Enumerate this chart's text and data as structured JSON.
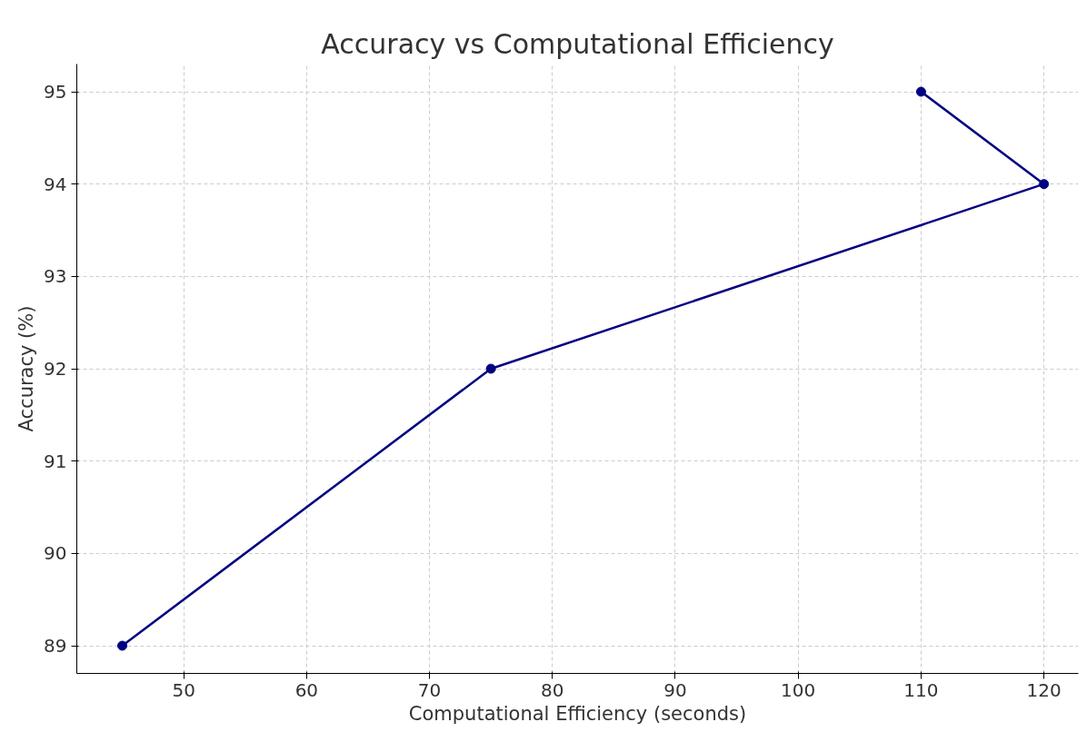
{
  "chart_data": {
    "type": "line",
    "title": "Accuracy vs Computational Efficiency",
    "xlabel": "Computational Efficiency (seconds)",
    "ylabel": "Accuracy (%)",
    "x": [
      45,
      75,
      120,
      110
    ],
    "series": [
      {
        "color": "#000080",
        "values": [
          89,
          92,
          94,
          95
        ]
      }
    ],
    "xlim": [
      41.3,
      122.8
    ],
    "ylim": [
      88.7,
      95.3
    ],
    "xticks": [
      50,
      60,
      70,
      80,
      90,
      100,
      110,
      120
    ],
    "yticks": [
      89,
      90,
      91,
      92,
      93,
      94,
      95
    ],
    "grid": true,
    "marker": "circle",
    "line_style": "solid"
  }
}
